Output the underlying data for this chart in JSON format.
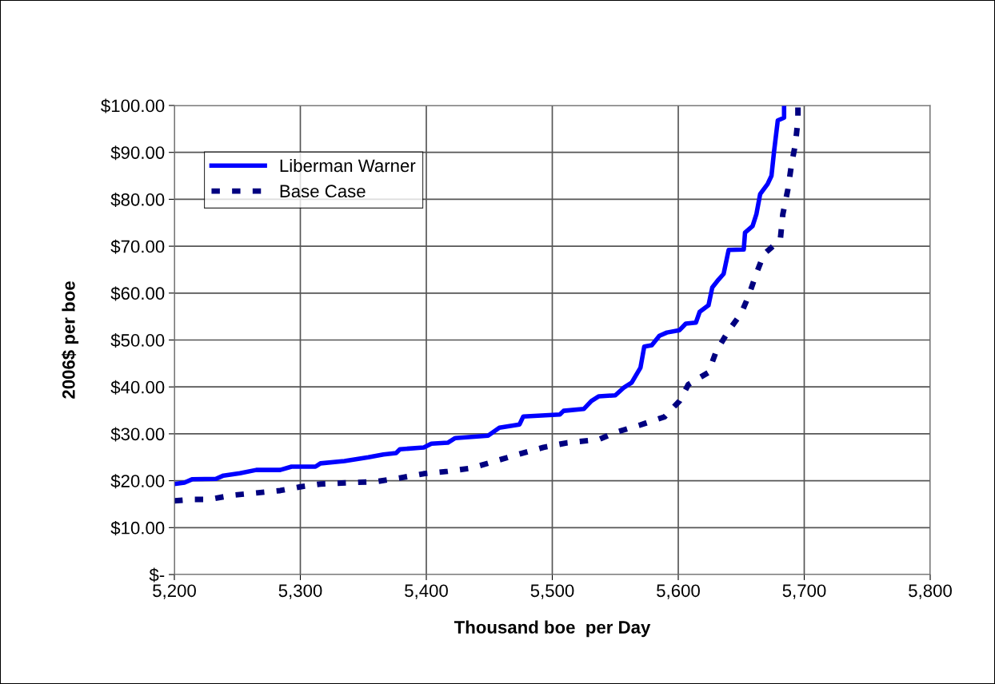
{
  "chart_data": {
    "type": "line",
    "xlabel": "Thousand boe  per Day",
    "ylabel": "2006$ per boe",
    "xlim": [
      5200,
      5800
    ],
    "xticks": [
      {
        "value": 5200,
        "label": "5,200"
      },
      {
        "value": 5300,
        "label": "5,300"
      },
      {
        "value": 5400,
        "label": "5,400"
      },
      {
        "value": 5500,
        "label": "5,500"
      },
      {
        "value": 5600,
        "label": "5,600"
      },
      {
        "value": 5700,
        "label": "5,700"
      },
      {
        "value": 5800,
        "label": "5,800"
      }
    ],
    "ylim": [
      0,
      100
    ],
    "yticks": [
      {
        "value": 0,
        "label": "$-"
      },
      {
        "value": 10,
        "label": "$10.00"
      },
      {
        "value": 20,
        "label": "$20.00"
      },
      {
        "value": 30,
        "label": "$30.00"
      },
      {
        "value": 40,
        "label": "$40.00"
      },
      {
        "value": 50,
        "label": "$50.00"
      },
      {
        "value": 60,
        "label": "$60.00"
      },
      {
        "value": 70,
        "label": "$70.00"
      },
      {
        "value": 80,
        "label": "$80.00"
      },
      {
        "value": 90,
        "label": "$90.00"
      },
      {
        "value": 100,
        "label": "$100.00"
      }
    ],
    "grid": true,
    "legend": "top left",
    "marker": "none",
    "series": [
      {
        "name": "Liberman Warner",
        "color": "#0000ff",
        "line_style": "solid",
        "x": [
          5200,
          5208,
          5214,
          5233,
          5239,
          5252,
          5265,
          5284,
          5293,
          5312,
          5316,
          5335,
          5354,
          5366,
          5376,
          5379,
          5398,
          5404,
          5417,
          5423,
          5449,
          5458,
          5474,
          5477,
          5506,
          5509,
          5525,
          5531,
          5537,
          5550,
          5557,
          5563,
          5570,
          5573,
          5579,
          5585,
          5591,
          5601,
          5606,
          5614,
          5617,
          5624,
          5627,
          5632,
          5636,
          5640,
          5652,
          5653,
          5659,
          5662,
          5665,
          5671,
          5674,
          5676,
          5679,
          5684,
          5684
        ],
        "values": [
          19.3,
          19.6,
          20.3,
          20.4,
          21.1,
          21.6,
          22.3,
          22.3,
          23.0,
          23.0,
          23.7,
          24.2,
          25.0,
          25.6,
          25.9,
          26.7,
          27.1,
          27.9,
          28.1,
          29.1,
          29.6,
          31.3,
          32.0,
          33.7,
          34.1,
          34.9,
          35.3,
          37.0,
          38.0,
          38.2,
          39.9,
          40.9,
          44.1,
          48.6,
          48.9,
          50.9,
          51.6,
          52.1,
          53.5,
          53.7,
          56.0,
          57.4,
          61.2,
          62.9,
          64.1,
          69.2,
          69.3,
          72.9,
          74.3,
          76.8,
          81.1,
          83.3,
          85.0,
          90.1,
          96.8,
          97.4,
          100
        ]
      },
      {
        "name": "Base Case",
        "color": "#000080",
        "line_style": "dashed",
        "x": [
          5200,
          5214,
          5227,
          5246,
          5265,
          5284,
          5300,
          5316,
          5341,
          5360,
          5379,
          5398,
          5417,
          5436,
          5455,
          5474,
          5493,
          5512,
          5537,
          5550,
          5570,
          5589,
          5601,
          5608,
          5624,
          5630,
          5640,
          5650,
          5656,
          5662,
          5668,
          5681,
          5683,
          5687,
          5690,
          5693,
          5695,
          5695
        ],
        "values": [
          15.7,
          16.0,
          16.0,
          16.9,
          17.4,
          17.9,
          18.7,
          19.3,
          19.6,
          19.8,
          20.6,
          21.5,
          22.0,
          22.7,
          24.2,
          25.7,
          27.1,
          28.1,
          28.8,
          30.3,
          31.9,
          33.6,
          37.0,
          40.5,
          43.1,
          47.5,
          52.0,
          55.7,
          59.5,
          64.2,
          68.3,
          71.4,
          76.8,
          82.1,
          87.6,
          91.8,
          96.9,
          100
        ]
      }
    ]
  }
}
